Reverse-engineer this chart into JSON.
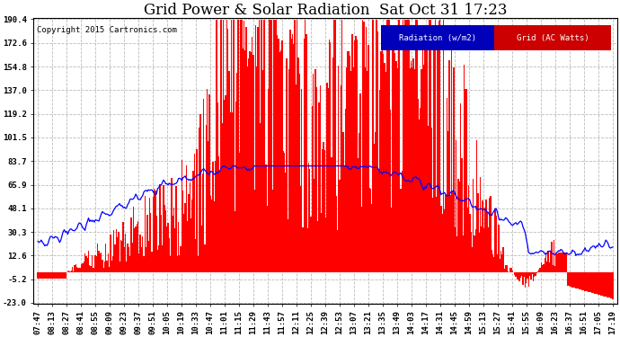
{
  "title": "Grid Power & Solar Radiation  Sat Oct 31 17:23",
  "copyright": "Copyright 2015 Cartronics.com",
  "legend_radiation": "Radiation (w/m2)",
  "legend_grid": "Grid (AC Watts)",
  "y_ticks": [
    190.4,
    172.6,
    154.8,
    137.0,
    119.2,
    101.5,
    83.7,
    65.9,
    48.1,
    30.3,
    12.6,
    -5.2,
    -23.0
  ],
  "y_min": -23.0,
  "y_max": 190.4,
  "x_labels": [
    "07:47",
    "08:13",
    "08:27",
    "08:41",
    "08:55",
    "09:09",
    "09:23",
    "09:37",
    "09:51",
    "10:05",
    "10:19",
    "10:33",
    "10:47",
    "11:01",
    "11:15",
    "11:29",
    "11:43",
    "11:57",
    "12:11",
    "12:25",
    "12:39",
    "12:53",
    "13:07",
    "13:21",
    "13:35",
    "13:49",
    "14:03",
    "14:17",
    "14:31",
    "14:45",
    "14:59",
    "15:13",
    "15:27",
    "15:41",
    "15:55",
    "16:09",
    "16:23",
    "16:37",
    "16:51",
    "17:05",
    "17:19"
  ],
  "bg_color": "#ffffff",
  "grid_color": "#bbbbbb",
  "bar_color": "#ff0000",
  "line_color": "#0000ff",
  "radiation_bg": "#0000bb",
  "grid_label_bg": "#cc0000",
  "title_fontsize": 12,
  "axis_fontsize": 6.5,
  "figwidth": 6.9,
  "figheight": 3.75,
  "dpi": 100
}
